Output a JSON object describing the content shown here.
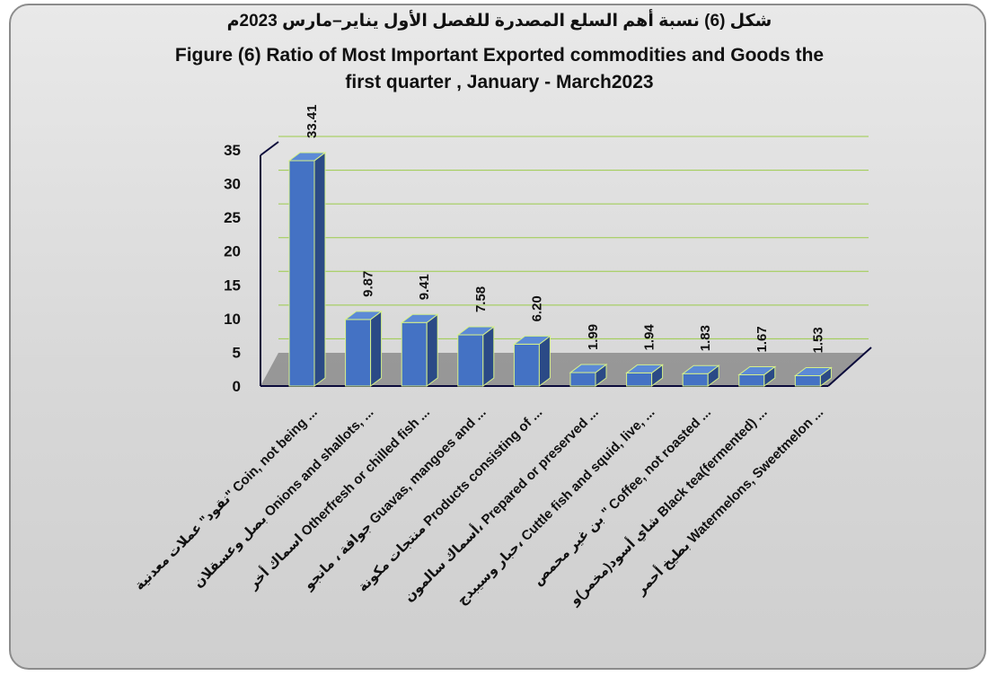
{
  "chart_data": {
    "type": "bar",
    "title_arabic": "شكل (6) نسبة أهم السلع المصدرة للفصل الأول يناير–مارس 2023م",
    "title_line1": "Figure (6) Ratio of  Most Important Exported commodities and Goods the",
    "title_line2": "first quarter , January - March2023",
    "categories": [
      "نقود\" عملات معدنية\" Coin, not being ...",
      "بصل وعسقلان Onions and shallots, ...",
      "اسماك أخر Otherfresh or chilled fish ...",
      "جوافة ، مانجو Guavas, mangoes and ...",
      "منتجات مكونة Products consisting of ...",
      "أسماك سالمون، Prepared or preserved ...",
      "حبار وسيبدج، Cuttle fish and squid, live, ...",
      "بن غير محمص \" Coffee, not roasted ...",
      "شاي أسود(مخمر)و Black tea(fermented) ...",
      "بطيخ أحمر Watermelons, Sweetmelon ..."
    ],
    "values": [
      33.41,
      9.87,
      9.41,
      7.58,
      6.2,
      1.99,
      1.94,
      1.83,
      1.67,
      1.53
    ],
    "value_labels": [
      "33.41",
      "9.87",
      "9.41",
      "7.58",
      "6.20",
      "1.99",
      "1.94",
      "1.83",
      "1.67",
      "1.53"
    ],
    "yticks": [
      "0",
      "5",
      "10",
      "15",
      "20",
      "25",
      "30",
      "35"
    ],
    "ylim": [
      0,
      35
    ],
    "grid": true,
    "colors": {
      "bar_front": "#4472c4",
      "bar_side": "#2b4a86",
      "bar_top": "#5c8ad6",
      "bar_outline": "#d6f08a",
      "gridline": "#9bcb4a",
      "floor": "#8c8c8c",
      "wall_line": "#0b0b3b"
    }
  }
}
